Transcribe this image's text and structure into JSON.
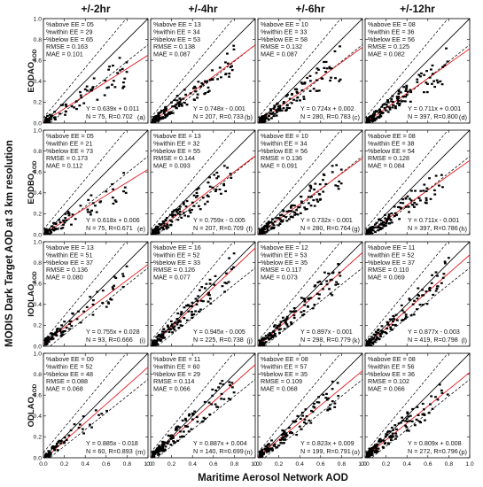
{
  "column_titles": [
    "+/-2hr",
    "+/-4hr",
    "+/-6hr",
    "+/-12hr"
  ],
  "row_labels": [
    {
      "main": "EODAO",
      "sub": "AOD"
    },
    {
      "main": "EODBO",
      "sub": "AOD"
    },
    {
      "main": "IODLAO",
      "sub": "AOD"
    },
    {
      "main": "ODLAO",
      "sub": "AOD"
    }
  ],
  "y_axis_title": "MODIS Dark Target AOD at 3 km resolution",
  "x_axis_title": "Maritime Aerosol Network AOD",
  "tick_labels": [
    "0.0",
    "0.2",
    "0.4",
    "0.6",
    "0.8",
    "1.0"
  ],
  "colors": {
    "one_to_one": "#000000",
    "ee_envelope": "#000000",
    "regression": "#e8191c",
    "points": "#000000"
  },
  "chart_data": {
    "type": "scatter",
    "layout": "4x4 grid",
    "xlim": [
      0,
      1.0
    ],
    "ylim": [
      0,
      1.0
    ],
    "xticks": [
      0.0,
      0.2,
      0.4,
      0.6,
      0.8,
      1.0
    ],
    "yticks": [
      0.0,
      0.2,
      0.4,
      0.6,
      0.8,
      1.0
    ],
    "line_styles": {
      "one_to_one": "solid black",
      "ee": "dashed black",
      "regression": "solid red"
    },
    "panels": [
      {
        "letter": "(a)",
        "row": 0,
        "col": 0,
        "stats": [
          "%above EE = 05",
          "%within EE = 29",
          "%below EE = 65",
          "RMSE = 0.163",
          "MAE = 0.101"
        ],
        "equation": "Y = 0.639x + 0.011",
        "nr": "N = 75, R=0.702",
        "slope": 0.639,
        "intercept": 0.011,
        "n": 75
      },
      {
        "letter": "(b)",
        "row": 0,
        "col": 1,
        "stats": [
          "%above EE = 13",
          "%within EE = 34",
          "%below EE = 53",
          "RMSE = 0.138",
          "MAE = 0.087"
        ],
        "equation": "Y = 0.748x - 0.001",
        "nr": "N = 207, R=0.733",
        "slope": 0.748,
        "intercept": -0.001,
        "n": 207
      },
      {
        "letter": "(c)",
        "row": 0,
        "col": 2,
        "stats": [
          "%above EE = 10",
          "%within EE = 33",
          "%below EE = 58",
          "RMSE = 0.132",
          "MAE = 0.087"
        ],
        "equation": "Y = 0.724x + 0.002",
        "nr": "N = 280, R=0.783",
        "slope": 0.724,
        "intercept": 0.002,
        "n": 280
      },
      {
        "letter": "(d)",
        "row": 0,
        "col": 3,
        "stats": [
          "%above EE = 08",
          "%within EE = 36",
          "%below EE = 56",
          "RMSE = 0.125",
          "MAE = 0.082"
        ],
        "equation": "Y = 0.711x + 0.001",
        "nr": "N = 397, R=0.800",
        "slope": 0.711,
        "intercept": 0.001,
        "n": 397
      },
      {
        "letter": "(e)",
        "row": 1,
        "col": 0,
        "stats": [
          "%above EE = 05",
          "%within EE = 21",
          "%below EE = 73",
          "RMSE = 0.173",
          "MAE = 0.112"
        ],
        "equation": "Y = 0.618x + 0.006",
        "nr": "N = 75, R=0.671",
        "slope": 0.618,
        "intercept": 0.006,
        "n": 75
      },
      {
        "letter": "(f)",
        "row": 1,
        "col": 1,
        "stats": [
          "%above EE = 13",
          "%within EE = 32",
          "%below EE = 55",
          "RMSE = 0.144",
          "MAE = 0.093"
        ],
        "equation": "Y = 0.759x - 0.005",
        "nr": "N = 207, R=0.709",
        "slope": 0.759,
        "intercept": -0.005,
        "n": 207
      },
      {
        "letter": "(g)",
        "row": 1,
        "col": 2,
        "stats": [
          "%above EE = 10",
          "%within EE = 34",
          "%below EE = 56",
          "RMSE = 0.136",
          "MAE = 0.091"
        ],
        "equation": "Y = 0.732x - 0.001",
        "nr": "N = 280, R=0.764",
        "slope": 0.732,
        "intercept": -0.001,
        "n": 280
      },
      {
        "letter": "(h)",
        "row": 1,
        "col": 3,
        "stats": [
          "%above EE = 08",
          "%within EE = 38",
          "%below EE = 54",
          "RMSE = 0.128",
          "MAE = 0.084"
        ],
        "equation": "Y = 0.711x - 0.001",
        "nr": "N = 397, R=0.786",
        "slope": 0.711,
        "intercept": -0.001,
        "n": 397
      },
      {
        "letter": "(i)",
        "row": 2,
        "col": 0,
        "stats": [
          "%above EE = 13",
          "%within EE = 51",
          "%below EE = 37",
          "RMSE = 0.136",
          "MAE = 0.080"
        ],
        "equation": "Y = 0.755x + 0.028",
        "nr": "N = 93, R=0.666",
        "slope": 0.755,
        "intercept": 0.028,
        "n": 93
      },
      {
        "letter": "(j)",
        "row": 2,
        "col": 1,
        "stats": [
          "%above EE = 16",
          "%within EE = 52",
          "%below EE = 33",
          "RMSE = 0.126",
          "MAE = 0.077"
        ],
        "equation": "Y = 0.945x - 0.005",
        "nr": "N = 225, R=0.738",
        "slope": 0.945,
        "intercept": -0.005,
        "n": 225
      },
      {
        "letter": "(k)",
        "row": 2,
        "col": 2,
        "stats": [
          "%above EE = 12",
          "%within EE = 53",
          "%below EE = 35",
          "RMSE = 0.117",
          "MAE = 0.073"
        ],
        "equation": "Y = 0.897x - 0.001",
        "nr": "N = 298, R=0.779",
        "slope": 0.897,
        "intercept": -0.001,
        "n": 298
      },
      {
        "letter": "(l)",
        "row": 2,
        "col": 3,
        "stats": [
          "%above EE = 11",
          "%within EE = 52",
          "%below EE = 37",
          "RMSE = 0.110",
          "MAE = 0.069"
        ],
        "equation": "Y = 0.877x - 0.003",
        "nr": "N = 419, R=0.798",
        "slope": 0.877,
        "intercept": -0.003,
        "n": 419
      },
      {
        "letter": "(m)",
        "row": 3,
        "col": 0,
        "stats": [
          "%above EE = 00",
          "%within EE = 52",
          "%below EE = 48",
          "RMSE = 0.088",
          "MAE = 0.068"
        ],
        "equation": "Y = 0.885x - 0.018",
        "nr": "N = 60, R=0.893",
        "slope": 0.885,
        "intercept": -0.018,
        "n": 60
      },
      {
        "letter": "(n)",
        "row": 3,
        "col": 1,
        "stats": [
          "%above EE = 11",
          "%within EE = 60",
          "%below EE = 29",
          "RMSE = 0.114",
          "MAE = 0.066"
        ],
        "equation": "Y = 0.887x + 0.004",
        "nr": "N = 140, R=0.699",
        "slope": 0.887,
        "intercept": 0.004,
        "n": 140
      },
      {
        "letter": "(o)",
        "row": 3,
        "col": 2,
        "stats": [
          "%above EE = 08",
          "%within EE = 57",
          "%below EE = 35",
          "RMSE = 0.109",
          "MAE = 0.068"
        ],
        "equation": "Y = 0.823x + 0.009",
        "nr": "N = 199, R=0.791",
        "slope": 0.823,
        "intercept": 0.009,
        "n": 199
      },
      {
        "letter": "(p)",
        "row": 3,
        "col": 3,
        "stats": [
          "%above EE = 08",
          "%within EE = 56",
          "%below EE = 36",
          "RMSE = 0.102",
          "MAE = 0.066"
        ],
        "equation": "Y = 0.809x + 0.008",
        "nr": "N = 272, R=0.796",
        "slope": 0.809,
        "intercept": 0.008,
        "n": 272
      }
    ]
  }
}
